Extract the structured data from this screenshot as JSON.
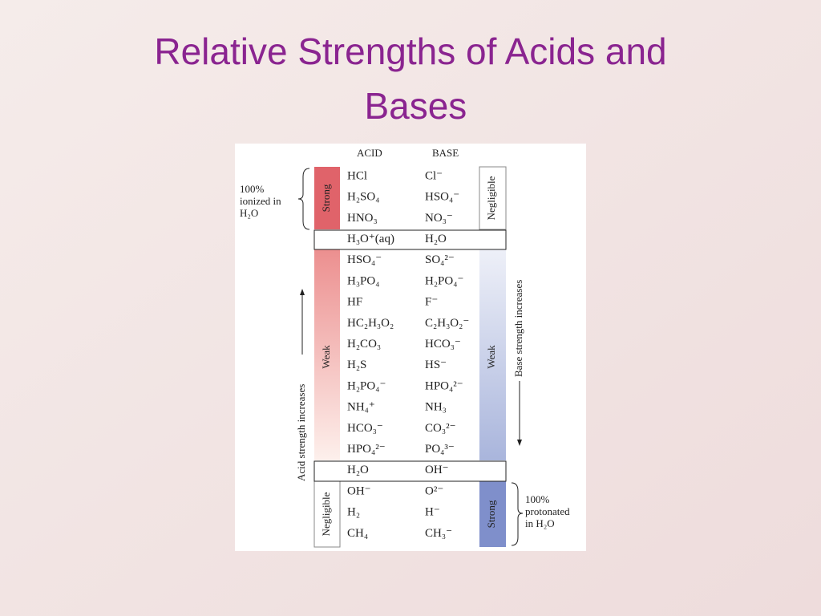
{
  "title": "Relative Strengths of Acids and Bases",
  "table": {
    "headers": {
      "acid": "ACID",
      "base": "BASE"
    },
    "rows": [
      [
        "HCl",
        "Cl⁻"
      ],
      [
        "H₂SO₄",
        "HSO₄⁻"
      ],
      [
        "HNO₃",
        "NO₃⁻"
      ],
      [
        "H₃O⁺(aq)",
        "H₂O"
      ],
      [
        "HSO₄⁻",
        "SO₄²⁻"
      ],
      [
        "H₃PO₄",
        "H₂PO₄⁻"
      ],
      [
        "HF",
        "F⁻"
      ],
      [
        "HC₂H₃O₂",
        "C₂H₃O₂⁻"
      ],
      [
        "H₂CO₃",
        "HCO₃⁻"
      ],
      [
        "H₂S",
        "HS⁻"
      ],
      [
        "H₂PO₄⁻",
        "HPO₄²⁻"
      ],
      [
        "NH₄⁺",
        "NH₃"
      ],
      [
        "HCO₃⁻",
        "CO₃²⁻"
      ],
      [
        "HPO₄²⁻",
        "PO₄³⁻"
      ],
      [
        "H₂O",
        "OH⁻"
      ],
      [
        "OH⁻",
        "O²⁻"
      ],
      [
        "H₂",
        "H⁻"
      ],
      [
        "CH₄",
        "CH₃⁻"
      ]
    ]
  },
  "acid_side": {
    "note": [
      "100%",
      "ionized in",
      "H₂O"
    ],
    "strong": "Strong",
    "weak": "Weak",
    "negligible": "Negligible",
    "arrow": "Acid strength increases"
  },
  "base_side": {
    "negligible": "Negligible",
    "weak": "Weak",
    "strong": "Strong",
    "arrow": "Base strength increases",
    "note": [
      "100%",
      "protonated",
      "in H₂O"
    ]
  }
}
